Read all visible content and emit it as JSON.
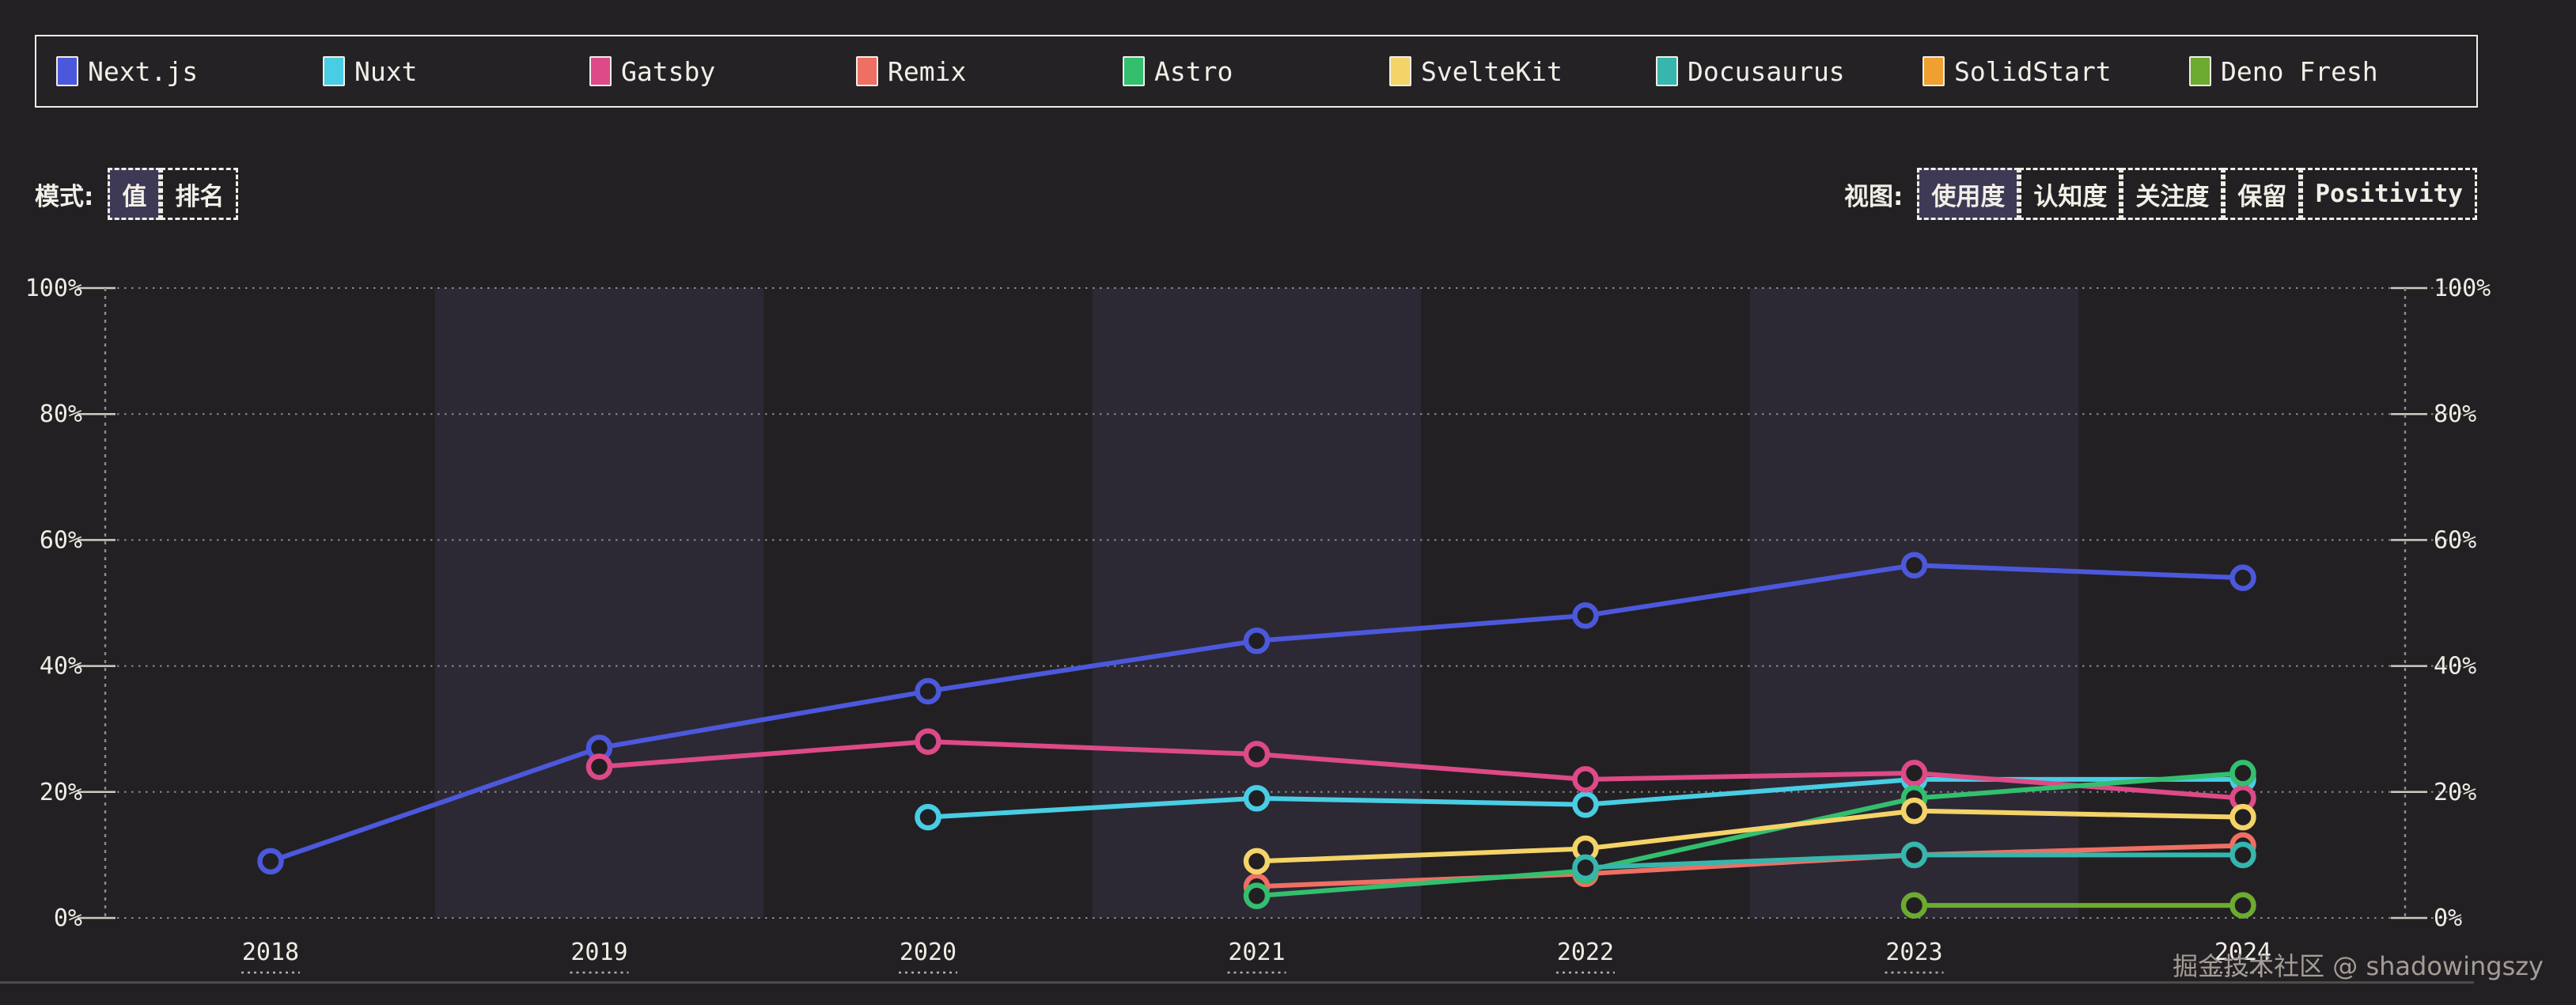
{
  "legend": {
    "items": [
      {
        "label": "Next.js",
        "color": "#4c58dc"
      },
      {
        "label": "Nuxt",
        "color": "#49cde4"
      },
      {
        "label": "Gatsby",
        "color": "#dd4a87"
      },
      {
        "label": "Remix",
        "color": "#ee6f63"
      },
      {
        "label": "Astro",
        "color": "#33bf6e"
      },
      {
        "label": "SvelteKit",
        "color": "#f4d368"
      },
      {
        "label": "Docusaurus",
        "color": "#36b6ad"
      },
      {
        "label": "SolidStart",
        "color": "#efa030"
      },
      {
        "label": "Deno Fresh",
        "color": "#6cab2f"
      }
    ]
  },
  "controls": {
    "mode_label": "模式:",
    "mode_buttons": [
      {
        "label": "值",
        "active": true,
        "latin": false
      },
      {
        "label": "排名",
        "active": false,
        "latin": false
      }
    ],
    "view_label": "视图:",
    "view_buttons": [
      {
        "label": "使用度",
        "active": true,
        "latin": false
      },
      {
        "label": "认知度",
        "active": false,
        "latin": false
      },
      {
        "label": "关注度",
        "active": false,
        "latin": false
      },
      {
        "label": "保留",
        "active": false,
        "latin": false
      },
      {
        "label": "Positivity",
        "active": false,
        "latin": true
      }
    ]
  },
  "chart_data": {
    "type": "line",
    "title": "",
    "x": [
      "2018",
      "2019",
      "2020",
      "2021",
      "2022",
      "2023",
      "2024"
    ],
    "y_axis": {
      "min": 0,
      "max": 100,
      "unit": "%",
      "ticks": [
        "0%",
        "20%",
        "40%",
        "60%",
        "80%",
        "100%"
      ],
      "tick_values": [
        0,
        20,
        40,
        60,
        80,
        100
      ],
      "sides": "both"
    },
    "grid": "dotted horizontal gridlines, dotted vertical axis lines left and right",
    "legend_position": "top",
    "background_bands": {
      "highlighted_years": [
        "2019",
        "2021",
        "2023"
      ],
      "band_color": "#2c2935"
    },
    "series": [
      {
        "name": "Next.js",
        "color": "#4c58dc",
        "values": [
          9,
          27,
          36,
          44,
          48,
          56,
          54
        ]
      },
      {
        "name": "Nuxt",
        "color": "#49cde4",
        "values": [
          null,
          null,
          16,
          19,
          18,
          22,
          22
        ]
      },
      {
        "name": "Gatsby",
        "color": "#dd4a87",
        "values": [
          null,
          24,
          28,
          26,
          22,
          23,
          19
        ]
      },
      {
        "name": "Remix",
        "color": "#ee6f63",
        "values": [
          null,
          null,
          null,
          5,
          7,
          10,
          11.5
        ]
      },
      {
        "name": "Astro",
        "color": "#33bf6e",
        "values": [
          null,
          null,
          null,
          3.5,
          7.5,
          19,
          23
        ]
      },
      {
        "name": "SvelteKit",
        "color": "#f4d368",
        "values": [
          null,
          null,
          null,
          9,
          11,
          17,
          16
        ]
      },
      {
        "name": "Docusaurus",
        "color": "#36b6ad",
        "values": [
          null,
          null,
          null,
          null,
          8,
          10,
          10
        ]
      },
      {
        "name": "SolidStart",
        "color": "#efa030",
        "values": [
          null,
          null,
          null,
          null,
          null,
          null,
          null
        ]
      },
      {
        "name": "Deno Fresh",
        "color": "#6cab2f",
        "values": [
          null,
          null,
          null,
          null,
          null,
          2,
          2
        ]
      }
    ]
  },
  "footer": {
    "credit": "掘金技术社区 @ shadowingszy"
  },
  "colors": {
    "page_bg": "#232023",
    "band_light": "#2c2935",
    "axis_text": "#f0ece4",
    "grid_dot": "#8a8a8a",
    "tick_solid": "#cfcac2",
    "active_button_bg": "#3e3954",
    "border": "#efece6",
    "footer_text": "#a39d96",
    "marker_fill": "#221f23"
  }
}
